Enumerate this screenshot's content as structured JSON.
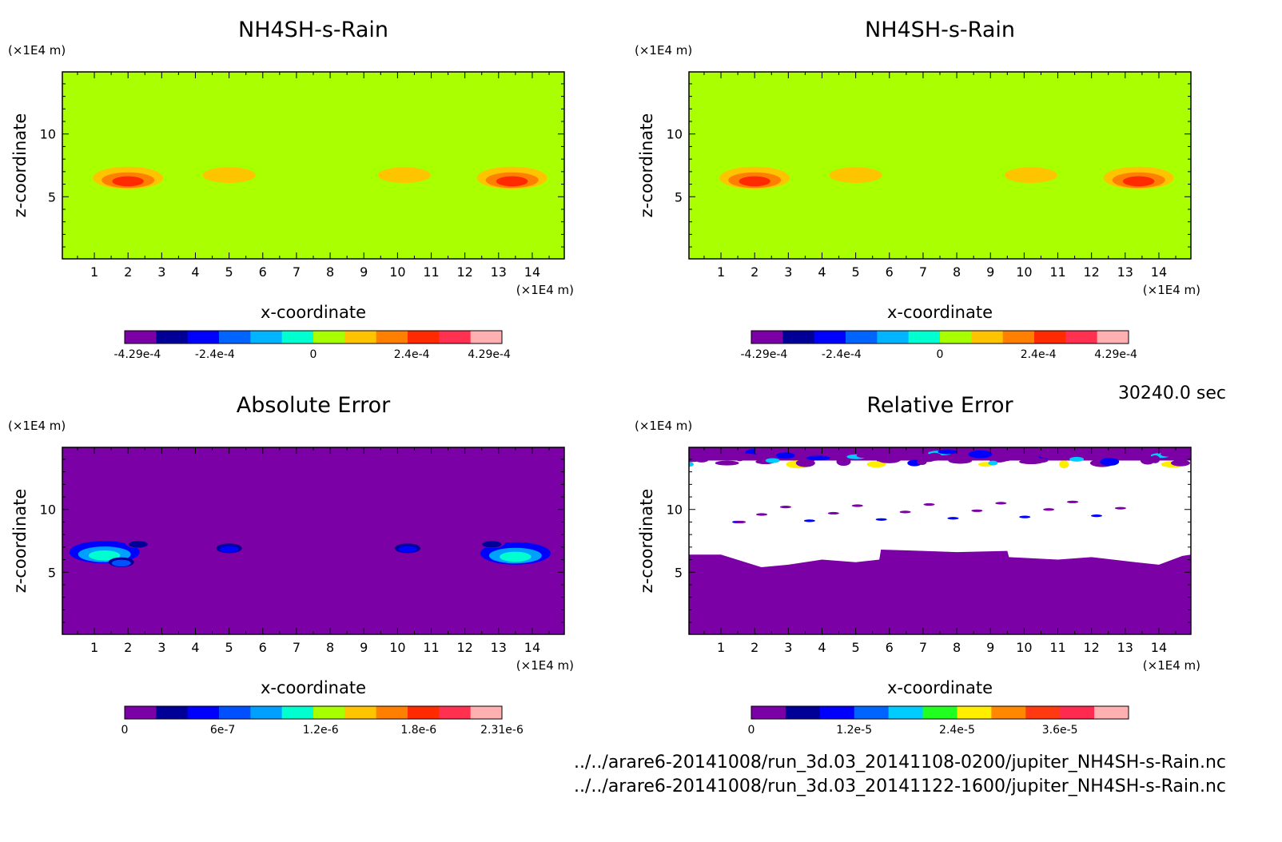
{
  "chart_data": [
    {
      "type": "heatmap",
      "title": "NH4SH-s-Rain",
      "xlabel": "x-coordinate",
      "ylabel": "z-coordinate",
      "x_unit": "(×1E4 m)",
      "y_unit": "(×1E4 m)",
      "xlim": [
        0.05,
        14.95
      ],
      "ylim": [
        0.05,
        14.95
      ],
      "xticks": [
        "1",
        "2",
        "3",
        "4",
        "5",
        "6",
        "7",
        "8",
        "9",
        "10",
        "11",
        "12",
        "13",
        "14"
      ],
      "yticks": [
        "5",
        "10"
      ],
      "background_color": "#aaff00",
      "colorbar": {
        "colors": [
          "#7b00a6",
          "#000096",
          "#0000ff",
          "#0064ff",
          "#00b4ff",
          "#00ffd0",
          "#a8ff00",
          "#ffc400",
          "#ff8000",
          "#ff2a00",
          "#ff3050",
          "#ffb0b0"
        ],
        "labels": [
          "-4.29e-4",
          "-2.4e-4",
          "0",
          "2.4e-4",
          "4.29e-4"
        ],
        "label_values": [
          -0.000429,
          -0.00024,
          0,
          0.00024,
          0.000429
        ],
        "range": [
          -0.00046,
          0.00046
        ]
      },
      "features": [
        {
          "x": 2.0,
          "z": 6.5,
          "level": 0.00024
        },
        {
          "x": 5.0,
          "z": 6.9,
          "level": 0.0001
        },
        {
          "x": 10.2,
          "z": 6.9,
          "level": 0.0001
        },
        {
          "x": 13.4,
          "z": 6.5,
          "level": 0.00024
        }
      ]
    },
    {
      "type": "heatmap",
      "title": "NH4SH-s-Rain",
      "xlabel": "x-coordinate",
      "ylabel": "z-coordinate",
      "x_unit": "(×1E4 m)",
      "y_unit": "(×1E4 m)",
      "xlim": [
        0.05,
        14.95
      ],
      "ylim": [
        0.05,
        14.95
      ],
      "xticks": [
        "1",
        "2",
        "3",
        "4",
        "5",
        "6",
        "7",
        "8",
        "9",
        "10",
        "11",
        "12",
        "13",
        "14"
      ],
      "yticks": [
        "5",
        "10"
      ],
      "background_color": "#aaff00",
      "colorbar": {
        "colors": [
          "#7b00a6",
          "#000096",
          "#0000ff",
          "#0064ff",
          "#00b4ff",
          "#00ffd0",
          "#a8ff00",
          "#ffc400",
          "#ff8000",
          "#ff2a00",
          "#ff3050",
          "#ffb0b0"
        ],
        "labels": [
          "-4.29e-4",
          "-2.4e-4",
          "0",
          "2.4e-4",
          "4.29e-4"
        ],
        "label_values": [
          -0.000429,
          -0.00024,
          0,
          0.00024,
          0.000429
        ],
        "range": [
          -0.00046,
          0.00046
        ]
      },
      "features": [
        {
          "x": 2.0,
          "z": 6.5,
          "level": 0.00024
        },
        {
          "x": 5.0,
          "z": 6.9,
          "level": 0.0001
        },
        {
          "x": 10.2,
          "z": 6.9,
          "level": 0.0001
        },
        {
          "x": 13.4,
          "z": 6.5,
          "level": 0.00024
        }
      ]
    },
    {
      "type": "heatmap",
      "title": "Absolute Error",
      "xlabel": "x-coordinate",
      "ylabel": "z-coordinate",
      "x_unit": "(×1E4 m)",
      "y_unit": "(×1E4 m)",
      "xlim": [
        0.05,
        14.95
      ],
      "ylim": [
        0.05,
        14.95
      ],
      "xticks": [
        "1",
        "2",
        "3",
        "4",
        "5",
        "6",
        "7",
        "8",
        "9",
        "10",
        "11",
        "12",
        "13",
        "14"
      ],
      "yticks": [
        "5",
        "10"
      ],
      "background_color": "#7b00a6",
      "colorbar": {
        "colors": [
          "#7b00a6",
          "#000096",
          "#0000ff",
          "#0050ff",
          "#00a0ff",
          "#00ffd0",
          "#a8ff00",
          "#ffc400",
          "#ff8000",
          "#ff2a00",
          "#ff3050",
          "#ffb0b0"
        ],
        "labels": [
          "0",
          "6e-7",
          "1.2e-6",
          "1.8e-6",
          "2.31e-6"
        ],
        "label_values": [
          0,
          6e-07,
          1.2e-06,
          1.8e-06,
          2.31e-06
        ],
        "range": [
          0,
          2.31e-06
        ]
      },
      "features": [
        {
          "x": 1.3,
          "z": 6.6,
          "level": 1e-06
        },
        {
          "x": 1.8,
          "z": 5.8,
          "level": 8e-07
        },
        {
          "x": 2.3,
          "z": 7.3,
          "level": 4e-07
        },
        {
          "x": 5.0,
          "z": 6.9,
          "level": 6e-07
        },
        {
          "x": 10.3,
          "z": 6.9,
          "level": 6e-07
        },
        {
          "x": 13.5,
          "z": 6.5,
          "level": 1.1e-06
        },
        {
          "x": 12.8,
          "z": 7.3,
          "level": 4e-07
        }
      ]
    },
    {
      "type": "heatmap",
      "title": "Relative Error",
      "xlabel": "x-coordinate",
      "ylabel": "z-coordinate",
      "x_unit": "(×1E4 m)",
      "y_unit": "(×1E4 m)",
      "xlim": [
        0.05,
        14.95
      ],
      "ylim": [
        0.05,
        14.95
      ],
      "xticks": [
        "1",
        "2",
        "3",
        "4",
        "5",
        "6",
        "7",
        "8",
        "9",
        "10",
        "11",
        "12",
        "13",
        "14"
      ],
      "yticks": [
        "5",
        "10"
      ],
      "background_color": "#7b00a6",
      "undefined_color": "#ffffff",
      "colorbar": {
        "colors": [
          "#7b00a6",
          "#000096",
          "#0000ff",
          "#0064ff",
          "#00ccff",
          "#20ff20",
          "#ffee00",
          "#ff8800",
          "#ff3a10",
          "#ff2a50",
          "#ffb0b0"
        ],
        "labels": [
          "0",
          "1.2e-5",
          "2.4e-5",
          "3.6e-5"
        ],
        "label_values": [
          0,
          1.2e-05,
          2.4e-05,
          3.6e-05
        ],
        "range": [
          0,
          4.4e-05
        ]
      },
      "white_region_lower_boundary_z": [
        {
          "x": 0.05,
          "z": 6.4
        },
        {
          "x": 1.0,
          "z": 6.4
        },
        {
          "x": 1.6,
          "z": 5.9
        },
        {
          "x": 2.2,
          "z": 5.4
        },
        {
          "x": 3.0,
          "z": 5.6
        },
        {
          "x": 4.0,
          "z": 6.0
        },
        {
          "x": 5.0,
          "z": 5.8
        },
        {
          "x": 5.7,
          "z": 6.0
        },
        {
          "x": 5.75,
          "z": 6.8
        },
        {
          "x": 7.0,
          "z": 6.7
        },
        {
          "x": 8.0,
          "z": 6.6
        },
        {
          "x": 9.5,
          "z": 6.7
        },
        {
          "x": 9.55,
          "z": 6.2
        },
        {
          "x": 11.0,
          "z": 6.0
        },
        {
          "x": 12.0,
          "z": 6.2
        },
        {
          "x": 13.3,
          "z": 5.8
        },
        {
          "x": 14.0,
          "z": 5.6
        },
        {
          "x": 14.7,
          "z": 6.3
        },
        {
          "x": 14.95,
          "z": 6.4
        }
      ],
      "white_region_upper_z": 13.9
    }
  ],
  "time_label": "30240.0 sec",
  "footer": {
    "path1": "../../arare6-20141008/run_3d.03_20141108-0200/jupiter_NH4SH-s-Rain.nc",
    "path2": "../../arare6-20141008/run_3d.03_20141122-1600/jupiter_NH4SH-s-Rain.nc"
  }
}
